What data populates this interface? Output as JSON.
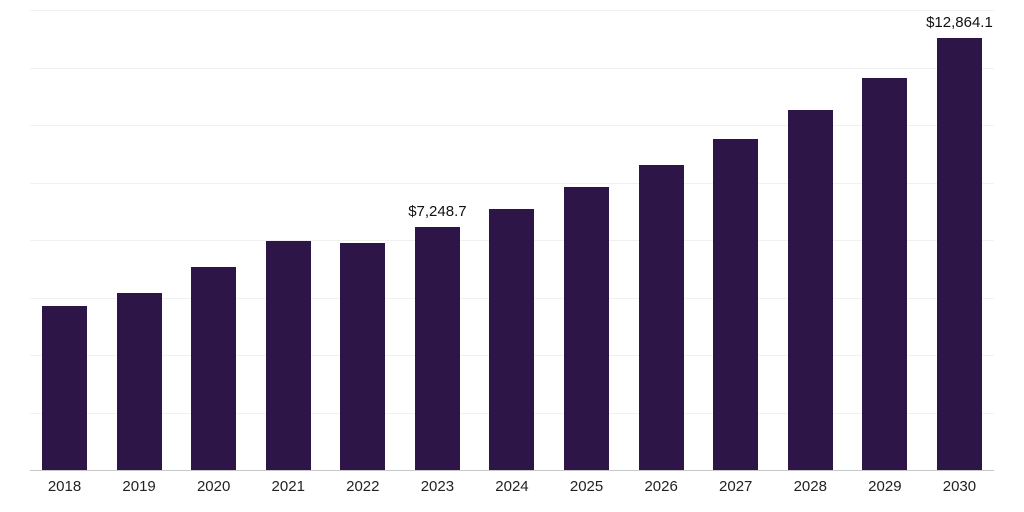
{
  "chart": {
    "bar_color": "#2E1547",
    "grid_color": "#F0F0F0",
    "axis_color": "#C8C8C8",
    "text_color": "#222222"
  },
  "chart_data": {
    "type": "bar",
    "title": "",
    "xlabel": "",
    "ylabel": "",
    "categories": [
      "2018",
      "2019",
      "2020",
      "2021",
      "2022",
      "2023",
      "2024",
      "2025",
      "2026",
      "2027",
      "2028",
      "2029",
      "2030"
    ],
    "values": [
      4890,
      5270,
      6050,
      6820,
      6760,
      7248.7,
      7780,
      8430,
      9090,
      9860,
      10720,
      11680,
      12864.1
    ],
    "data_labels": {
      "2023": "$7,248.7",
      "2030": "$12,864.1"
    },
    "ylim": [
      0,
      13700
    ],
    "grid": "horizontal",
    "grid_divisions": 8,
    "legend": "none"
  }
}
